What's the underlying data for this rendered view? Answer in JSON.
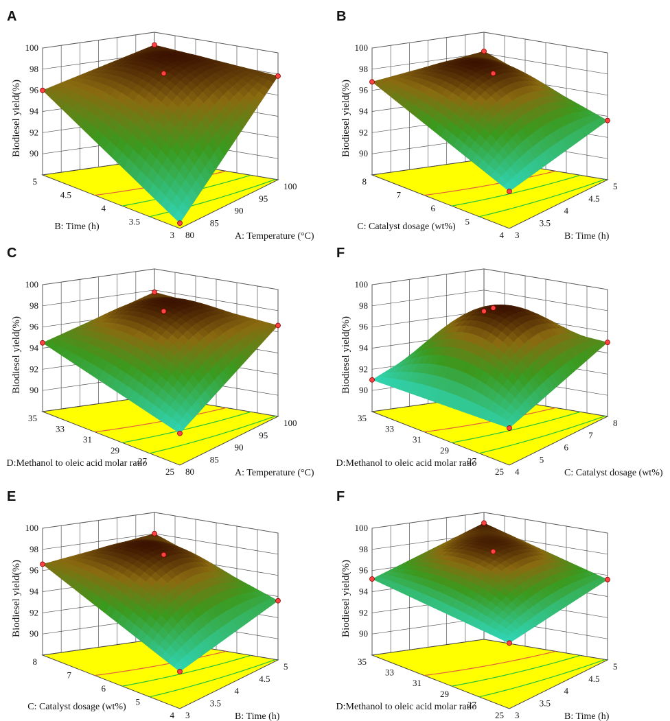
{
  "figure": {
    "caption": "",
    "colors": {
      "contour_floor": "#ffff00",
      "surface_low": "#2fd6b8",
      "surface_mid": "#3a9a1e",
      "surface_high": "#3b1200",
      "design_point": "#ff4444",
      "grid": "#555555"
    }
  },
  "chart_data": [
    {
      "type": "surface3d",
      "panel_label": "A",
      "zlabel": "Biodiesel yield(%)",
      "zticks": [
        "100",
        "98",
        "96",
        "94",
        "92",
        "90"
      ],
      "zlim": [
        88,
        100
      ],
      "left_axis": {
        "label": "B: Time (h)",
        "ticks": [
          "5",
          "4.5",
          "4",
          "3.5",
          "3"
        ]
      },
      "right_axis": {
        "label": "A: Temperature (°C)",
        "ticks": [
          "80",
          "85",
          "90",
          "95",
          "100"
        ]
      },
      "corner_values": {
        "front": 88.5,
        "left": 96.0,
        "back": 98.8,
        "right": 97.8
      },
      "peak": 98.6
    },
    {
      "type": "surface3d",
      "panel_label": "B",
      "zlabel": "Biodiesel yield(%)",
      "zticks": [
        "100",
        "98",
        "96",
        "94",
        "92",
        "90"
      ],
      "zlim": [
        88,
        100
      ],
      "left_axis": {
        "label": "C: Catalyst dosage (wt%)",
        "ticks": [
          "8",
          "7",
          "6",
          "5",
          "4"
        ]
      },
      "right_axis": {
        "label": "B: Time (h)",
        "ticks": [
          "3",
          "3.5",
          "4",
          "4.5",
          "5"
        ]
      },
      "corner_values": {
        "front": 91.5,
        "left": 96.8,
        "back": 98.2,
        "right": 93.6
      },
      "peak": 98.6
    },
    {
      "type": "surface3d",
      "panel_label": "C",
      "zlabel": "Biodiesel yield(%)",
      "zticks": [
        "100",
        "98",
        "96",
        "94",
        "92",
        "90"
      ],
      "zlim": [
        88,
        100
      ],
      "left_axis": {
        "label": "D:Methanol to oleic acid molar ratio",
        "ticks": [
          "35",
          "33",
          "31",
          "29",
          "27",
          "25"
        ]
      },
      "right_axis": {
        "label": "A: Temperature (°C)",
        "ticks": [
          "80",
          "85",
          "90",
          "95",
          "100"
        ]
      },
      "corner_values": {
        "front": 91.0,
        "left": 94.5,
        "back": 97.8,
        "right": 96.6
      },
      "peak": 98.5
    },
    {
      "type": "surface3d",
      "panel_label": "F",
      "zlabel": "Biodiesel yield(%)",
      "zticks": [
        "100",
        "98",
        "96",
        "94",
        "92",
        "90"
      ],
      "zlim": [
        88,
        100
      ],
      "left_axis": {
        "label": "D:Methanol to oleic acid molar ratio",
        "ticks": [
          "35",
          "33",
          "31",
          "29",
          "27",
          "25"
        ]
      },
      "right_axis": {
        "label": "C: Catalyst dosage (wt%)",
        "ticks": [
          "4",
          "5",
          "6",
          "7",
          "8"
        ]
      },
      "corner_values": {
        "front": 91.5,
        "left": 91.0,
        "back": 96.0,
        "right": 95.0
      },
      "peak": 98.8
    },
    {
      "type": "surface3d",
      "panel_label": "E",
      "zlabel": "Biodiesel yield(%)",
      "zticks": [
        "100",
        "98",
        "96",
        "94",
        "92",
        "90"
      ],
      "zlim": [
        88,
        100
      ],
      "left_axis": {
        "label": "C: Catalyst dosage (wt%)",
        "ticks": [
          "8",
          "7",
          "6",
          "5",
          "4"
        ]
      },
      "right_axis": {
        "label": "B: Time (h)",
        "ticks": [
          "3",
          "3.5",
          "4",
          "4.5",
          "5"
        ]
      },
      "corner_values": {
        "front": 91.5,
        "left": 96.6,
        "back": 98.0,
        "right": 93.6
      },
      "peak": 98.5
    },
    {
      "type": "surface3d",
      "panel_label": "F",
      "zlabel": "Biodiesel yield(%)",
      "zticks": [
        "100",
        "98",
        "96",
        "94",
        "92",
        "90"
      ],
      "zlim": [
        88,
        100
      ],
      "left_axis": {
        "label": "D:Methanol to oleic acid molar ratio",
        "ticks": [
          "35",
          "33",
          "31",
          "29",
          "27",
          "25"
        ]
      },
      "right_axis": {
        "label": "B: Time (h)",
        "ticks": [
          "3",
          "3.5",
          "4",
          "4.5",
          "5"
        ]
      },
      "corner_values": {
        "front": 94.2,
        "left": 95.2,
        "back": 99.0,
        "right": 95.6
      },
      "peak": 98.8
    }
  ]
}
